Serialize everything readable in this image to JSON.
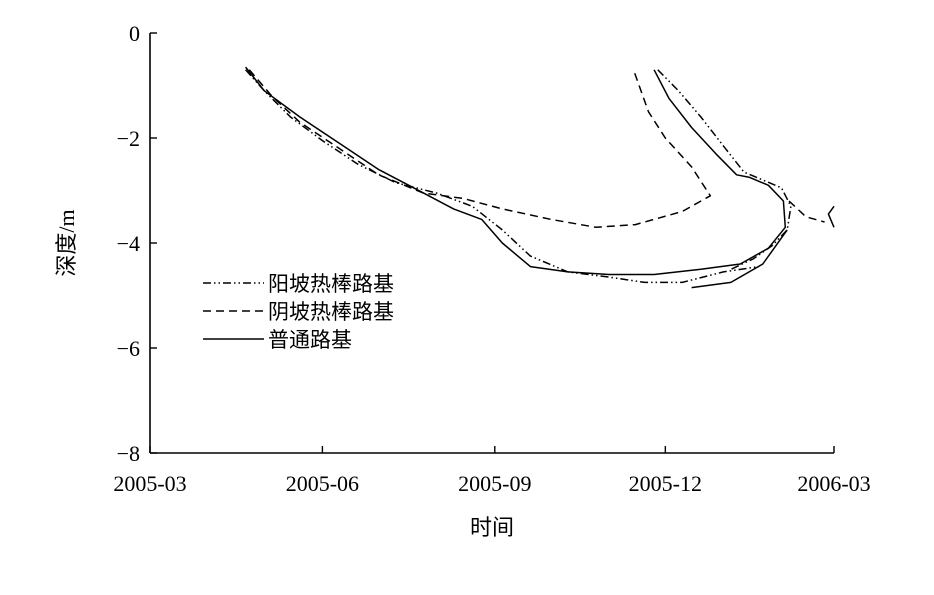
{
  "chart_data": {
    "type": "line",
    "title": "",
    "xlabel": "时间",
    "ylabel": "深度/m",
    "x_ticks": [
      "2005-03",
      "2005-06",
      "2005-09",
      "2005-12",
      "2006-03"
    ],
    "xlim": [
      "2005-03-01",
      "2006-03-01"
    ],
    "ylim": [
      -8,
      0
    ],
    "y_ticks": [
      0,
      -2,
      -4,
      -6,
      -8
    ],
    "y_tick_labels": [
      "0",
      "−2",
      "−4",
      "−6",
      "−8"
    ],
    "grid": false,
    "legend_position": "left-center",
    "series": [
      {
        "name": "阳坡热棒路基",
        "style": "dash-dot-dot",
        "color": "#000000",
        "segments": [
          [
            [
              "2005-04-21",
              -0.7
            ],
            [
              "2005-05-01",
              -1.1
            ],
            [
              "2005-05-15",
              -1.6
            ],
            [
              "2005-06-01",
              -2.05
            ],
            [
              "2005-06-20",
              -2.5
            ],
            [
              "2005-07-10",
              -2.85
            ],
            [
              "2005-08-01",
              -3.05
            ],
            [
              "2005-08-20",
              -3.3
            ],
            [
              "2005-09-05",
              -3.75
            ],
            [
              "2005-09-20",
              -4.25
            ],
            [
              "2005-10-10",
              -4.55
            ],
            [
              "2005-11-01",
              -4.65
            ],
            [
              "2005-11-20",
              -4.75
            ],
            [
              "2005-12-10",
              -4.75
            ],
            [
              "2006-01-01",
              -4.55
            ],
            [
              "2006-01-20",
              -4.45
            ]
          ],
          [
            [
              "2005-11-27",
              -0.7
            ],
            [
              "2005-12-08",
              -1.1
            ],
            [
              "2005-12-20",
              -1.6
            ],
            [
              "2006-01-01",
              -2.15
            ],
            [
              "2006-01-12",
              -2.65
            ],
            [
              "2006-01-22",
              -2.8
            ],
            [
              "2006-02-01",
              -2.95
            ],
            [
              "2006-02-06",
              -3.3
            ],
            [
              "2006-02-04",
              -3.75
            ],
            [
              "2006-01-27",
              -4.05
            ],
            [
              "2006-01-17",
              -4.3
            ],
            [
              "2006-01-05",
              -4.5
            ]
          ]
        ]
      },
      {
        "name": "阴坡热棒路基",
        "style": "dashed",
        "color": "#000000",
        "segments": [
          [
            [
              "2005-04-23",
              -0.7
            ],
            [
              "2005-05-05",
              -1.2
            ],
            [
              "2005-05-20",
              -1.7
            ],
            [
              "2005-06-10",
              -2.2
            ],
            [
              "2005-07-01",
              -2.7
            ],
            [
              "2005-07-25",
              -3.05
            ],
            [
              "2005-08-15",
              -3.15
            ],
            [
              "2005-09-05",
              -3.35
            ],
            [
              "2005-10-01",
              -3.55
            ],
            [
              "2005-10-25",
              -3.7
            ],
            [
              "2005-11-15",
              -3.65
            ],
            [
              "2005-12-10",
              -3.4
            ],
            [
              "2005-12-25",
              -3.1
            ],
            [
              "2005-12-15",
              -2.55
            ],
            [
              "2005-12-01",
              -2.0
            ],
            [
              "2005-11-22",
              -1.5
            ],
            [
              "2005-11-14",
              -0.7
            ]
          ],
          [
            [
              "2006-02-05",
              -3.2
            ],
            [
              "2006-02-14",
              -3.5
            ],
            [
              "2006-02-24",
              -3.6
            ]
          ]
        ]
      },
      {
        "name": "普通路基",
        "style": "solid",
        "color": "#000000",
        "segments": [
          [
            [
              "2005-04-21",
              -0.65
            ],
            [
              "2005-05-01",
              -1.1
            ],
            [
              "2005-05-20",
              -1.6
            ],
            [
              "2005-06-10",
              -2.1
            ],
            [
              "2005-07-01",
              -2.6
            ],
            [
              "2005-07-25",
              -3.05
            ],
            [
              "2005-08-10",
              -3.35
            ],
            [
              "2005-08-25",
              -3.55
            ],
            [
              "2005-09-05",
              -4.0
            ],
            [
              "2005-09-20",
              -4.45
            ],
            [
              "2005-10-10",
              -4.55
            ],
            [
              "2005-11-01",
              -4.6
            ],
            [
              "2005-11-25",
              -4.6
            ],
            [
              "2005-12-20",
              -4.5
            ],
            [
              "2006-01-10",
              -4.4
            ],
            [
              "2006-01-25",
              -4.1
            ],
            [
              "2006-02-03",
              -3.7
            ],
            [
              "2006-02-02",
              -3.2
            ],
            [
              "2006-01-25",
              -2.9
            ],
            [
              "2006-01-15",
              -2.75
            ],
            [
              "2006-01-08",
              -2.7
            ],
            [
              "2005-12-28",
              -2.3
            ],
            [
              "2005-12-15",
              -1.8
            ],
            [
              "2005-12-03",
              -1.25
            ],
            [
              "2005-11-25",
              -0.7
            ]
          ],
          [
            [
              "2005-12-15",
              -4.85
            ],
            [
              "2006-01-05",
              -4.75
            ],
            [
              "2006-01-22",
              -4.4
            ],
            [
              "2006-02-04",
              -3.75
            ]
          ],
          [
            [
              "2006-02-29",
              -3.3
            ],
            [
              "2006-02-26",
              -3.45
            ],
            [
              "2006-03-01",
              -3.7
            ]
          ]
        ]
      }
    ]
  }
}
